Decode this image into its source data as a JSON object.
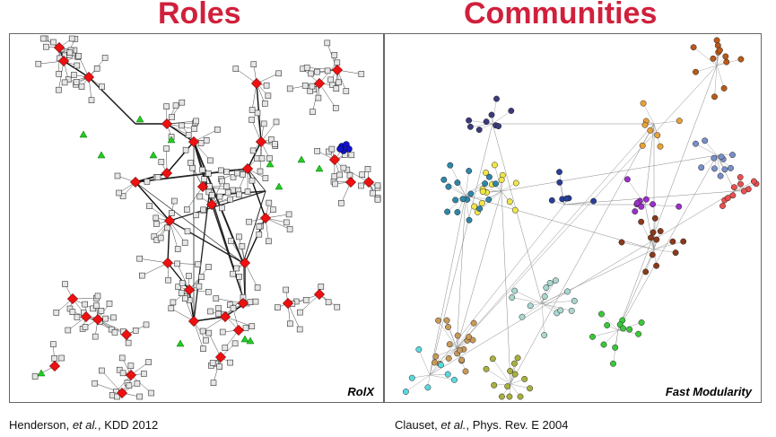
{
  "left": {
    "title": "Roles",
    "panel_label": "RolX",
    "citation": {
      "authors": "Henderson, ",
      "etal": "et al.",
      "venue": ", KDD 2012"
    },
    "colors": {
      "square": "#e6e6e6",
      "diamond": "#ee1111",
      "triangle": "#22cc22",
      "blue": "#1111cc"
    }
  },
  "right": {
    "title": "Communities",
    "panel_label": "Fast Modularity",
    "citation": {
      "authors": "Clauset, ",
      "etal": "et al.",
      "venue": ", Phys. Rev. E 2004"
    },
    "colors": [
      "#3a3a7a",
      "#f0e64a",
      "#283f99",
      "#9b2fc8",
      "#e8a23a",
      "#2f87a8",
      "#3ac83a",
      "#a8d8d0",
      "#c89a5a",
      "#5ad8e0",
      "#8a3a1a",
      "#a8b040",
      "#e85050",
      "#7890c8",
      "#b85a1a"
    ]
  }
}
